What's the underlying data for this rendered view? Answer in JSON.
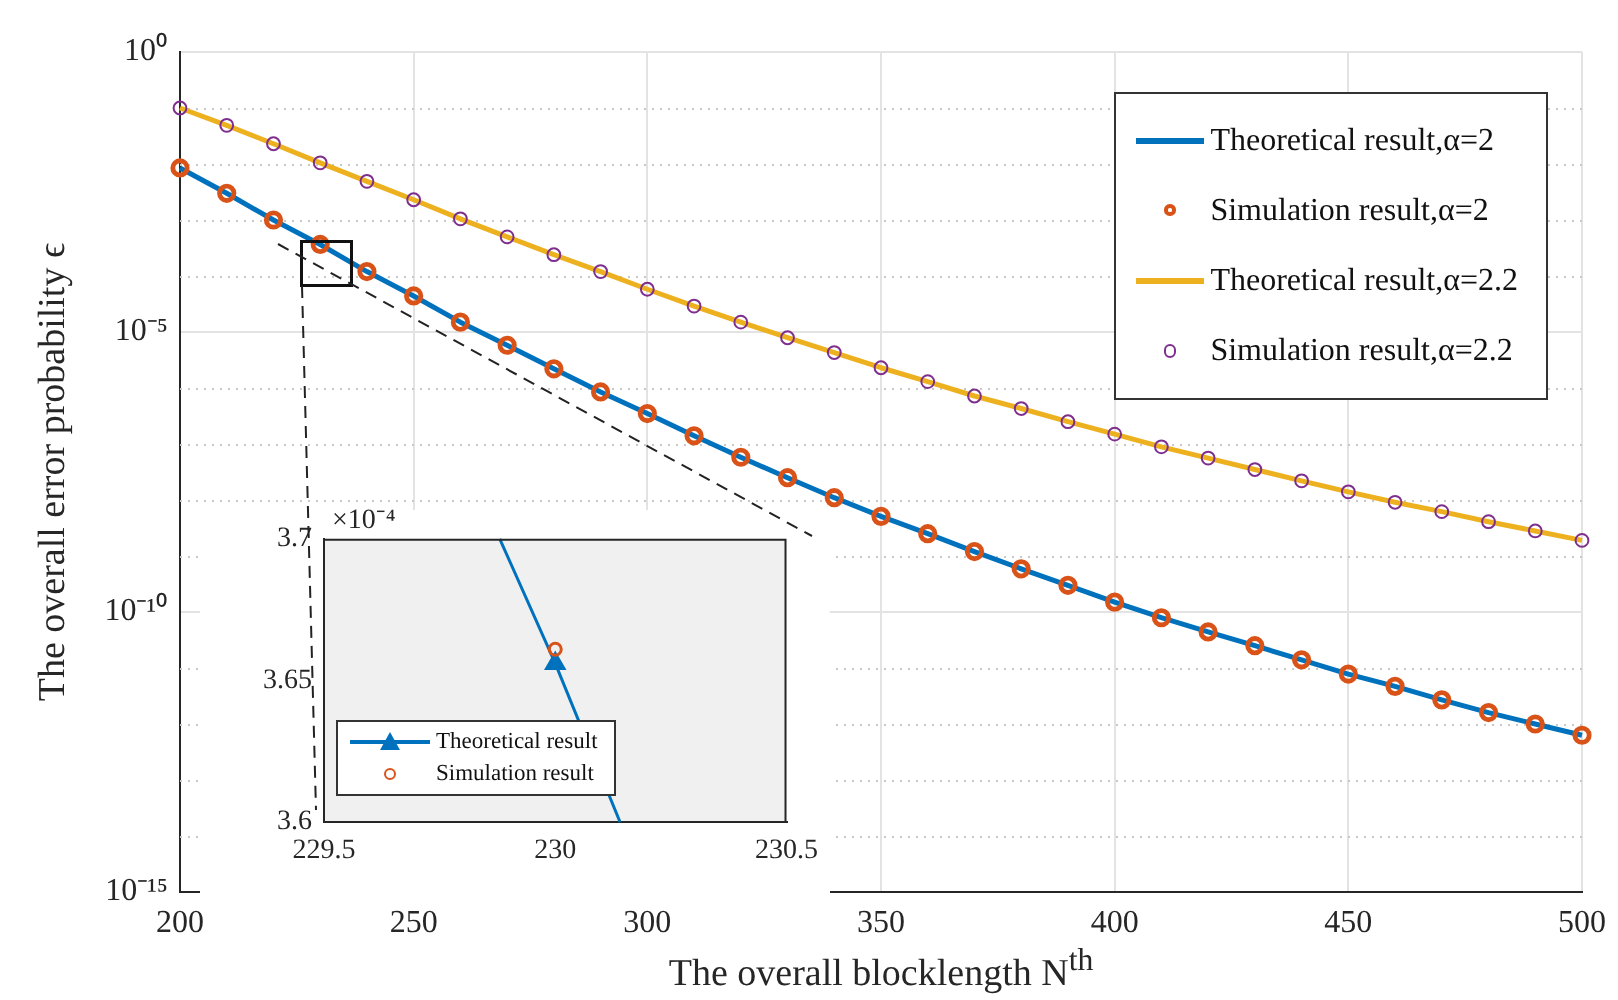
{
  "chart_data": [
    {
      "type": "line",
      "xlabel": "The overall blocklength N$^{th}$",
      "ylabel": "The overall error probability ϵ",
      "log": "y",
      "x": [
        200,
        210,
        220,
        230,
        240,
        250,
        260,
        270,
        280,
        290,
        300,
        310,
        320,
        330,
        340,
        350,
        360,
        370,
        380,
        390,
        400,
        410,
        420,
        430,
        440,
        450,
        460,
        470,
        480,
        490,
        500
      ],
      "series": [
        {
          "name": "Theoretical result,α=2",
          "type": "line",
          "color": "#0072bd",
          "values": [
            0.0085,
            0.003,
            0.001,
            0.000365,
            0.00012,
            4.4e-05,
            1.5e-05,
            5.8e-06,
            2.2e-06,
            8.5e-07,
            3.5e-07,
            1.4e-07,
            5.8e-08,
            2.5e-08,
            1.1e-08,
            5.1e-09,
            2.5e-09,
            1.2e-09,
            5.9e-10,
            3e-10,
            1.5e-10,
            7.9e-11,
            4.4e-11,
            2.5e-11,
            1.4e-11,
            7.8e-12,
            4.7e-12,
            2.7e-12,
            1.6e-12,
            1e-12,
            6.3e-13
          ]
        },
        {
          "name": "Simulation result,α=2",
          "type": "scatter",
          "marker": "circle",
          "color": "#d95319",
          "values": [
            0.0085,
            0.003,
            0.001,
            0.000366,
            0.00012,
            4.4e-05,
            1.5e-05,
            5.8e-06,
            2.2e-06,
            8.5e-07,
            3.5e-07,
            1.4e-07,
            5.8e-08,
            2.5e-08,
            1.1e-08,
            5.1e-09,
            2.5e-09,
            1.2e-09,
            5.9e-10,
            3e-10,
            1.5e-10,
            7.9e-11,
            4.4e-11,
            2.5e-11,
            1.4e-11,
            7.8e-12,
            4.7e-12,
            2.7e-12,
            1.6e-12,
            1e-12,
            6.3e-13
          ]
        },
        {
          "name": "Theoretical result,α=2.2",
          "type": "line",
          "color": "#edb120",
          "values": [
            0.1,
            0.049,
            0.023,
            0.0105,
            0.0049,
            0.0023,
            0.00105,
            0.0005,
            0.00024,
            0.00012,
            5.8e-05,
            2.9e-05,
            1.5e-05,
            7.9e-06,
            4.3e-06,
            2.3e-06,
            1.3e-06,
            7.2e-07,
            4.3e-07,
            2.5e-07,
            1.5e-07,
            8.9e-08,
            5.6e-08,
            3.5e-08,
            2.2e-08,
            1.4e-08,
            9.1e-09,
            6.2e-09,
            4.1e-09,
            2.8e-09,
            1.9e-09
          ]
        },
        {
          "name": "Simulation result,α=2.2",
          "type": "scatter",
          "marker": "circle",
          "color": "#7e2f8e",
          "values": [
            0.1,
            0.049,
            0.023,
            0.0105,
            0.0049,
            0.0023,
            0.00105,
            0.0005,
            0.00024,
            0.00012,
            5.8e-05,
            2.9e-05,
            1.5e-05,
            7.9e-06,
            4.3e-06,
            2.3e-06,
            1.3e-06,
            7.2e-07,
            4.3e-07,
            2.5e-07,
            1.5e-07,
            8.9e-08,
            5.6e-08,
            3.5e-08,
            2.2e-08,
            1.4e-08,
            9.1e-09,
            6.2e-09,
            4.1e-09,
            2.8e-09,
            1.9e-09
          ]
        }
      ],
      "xlim": [
        200,
        500
      ],
      "xticks": [
        200,
        250,
        300,
        350,
        400,
        450,
        500
      ],
      "ylim": [
        1e-15,
        1
      ],
      "yticks": [
        {
          "value": 1,
          "label": "10⁰"
        },
        {
          "value": 0.1,
          "label": null
        },
        {
          "value": 0.01,
          "label": null
        },
        {
          "value": 0.001,
          "label": null
        },
        {
          "value": 0.0001,
          "label": null
        },
        {
          "value": 1e-05,
          "label": "10⁻⁵"
        },
        {
          "value": 1e-06,
          "label": null
        },
        {
          "value": 1e-07,
          "label": null
        },
        {
          "value": 1e-08,
          "label": null
        },
        {
          "value": 1e-09,
          "label": null
        },
        {
          "value": 1e-10,
          "label": "10⁻¹⁰"
        },
        {
          "value": 1e-11,
          "label": null
        },
        {
          "value": 1e-12,
          "label": null
        },
        {
          "value": 1e-13,
          "label": null
        },
        {
          "value": 1e-14,
          "label": null
        },
        {
          "value": 1e-15,
          "label": "10⁻¹⁵"
        }
      ],
      "grid": true,
      "legend": "top right"
    },
    {
      "type": "line",
      "annotations": [
        "×10⁻⁴"
      ],
      "series": [
        {
          "type": "line",
          "marker": "none",
          "color": "#0072bd",
          "x": [
            229.88,
            230,
            230.14
          ],
          "values": [
            3.7,
            3.656,
            3.6
          ]
        },
        {
          "name": "Theoretical result",
          "type": "line",
          "marker": "triangle",
          "color": "#0072bd",
          "x": [
            230
          ],
          "values": [
            3.656
          ]
        },
        {
          "name": "Simulation result",
          "type": "scatter",
          "marker": "circle",
          "color": "#d95319",
          "x": [
            230
          ],
          "values": [
            3.661
          ]
        }
      ],
      "xlim": [
        229.5,
        230.5
      ],
      "xticks": [
        229.5,
        230,
        230.5
      ],
      "ylim": [
        3.6,
        3.7
      ],
      "yticks": [
        3.6,
        3.65,
        3.7
      ],
      "grid": false,
      "legend": "bottom left"
    }
  ]
}
